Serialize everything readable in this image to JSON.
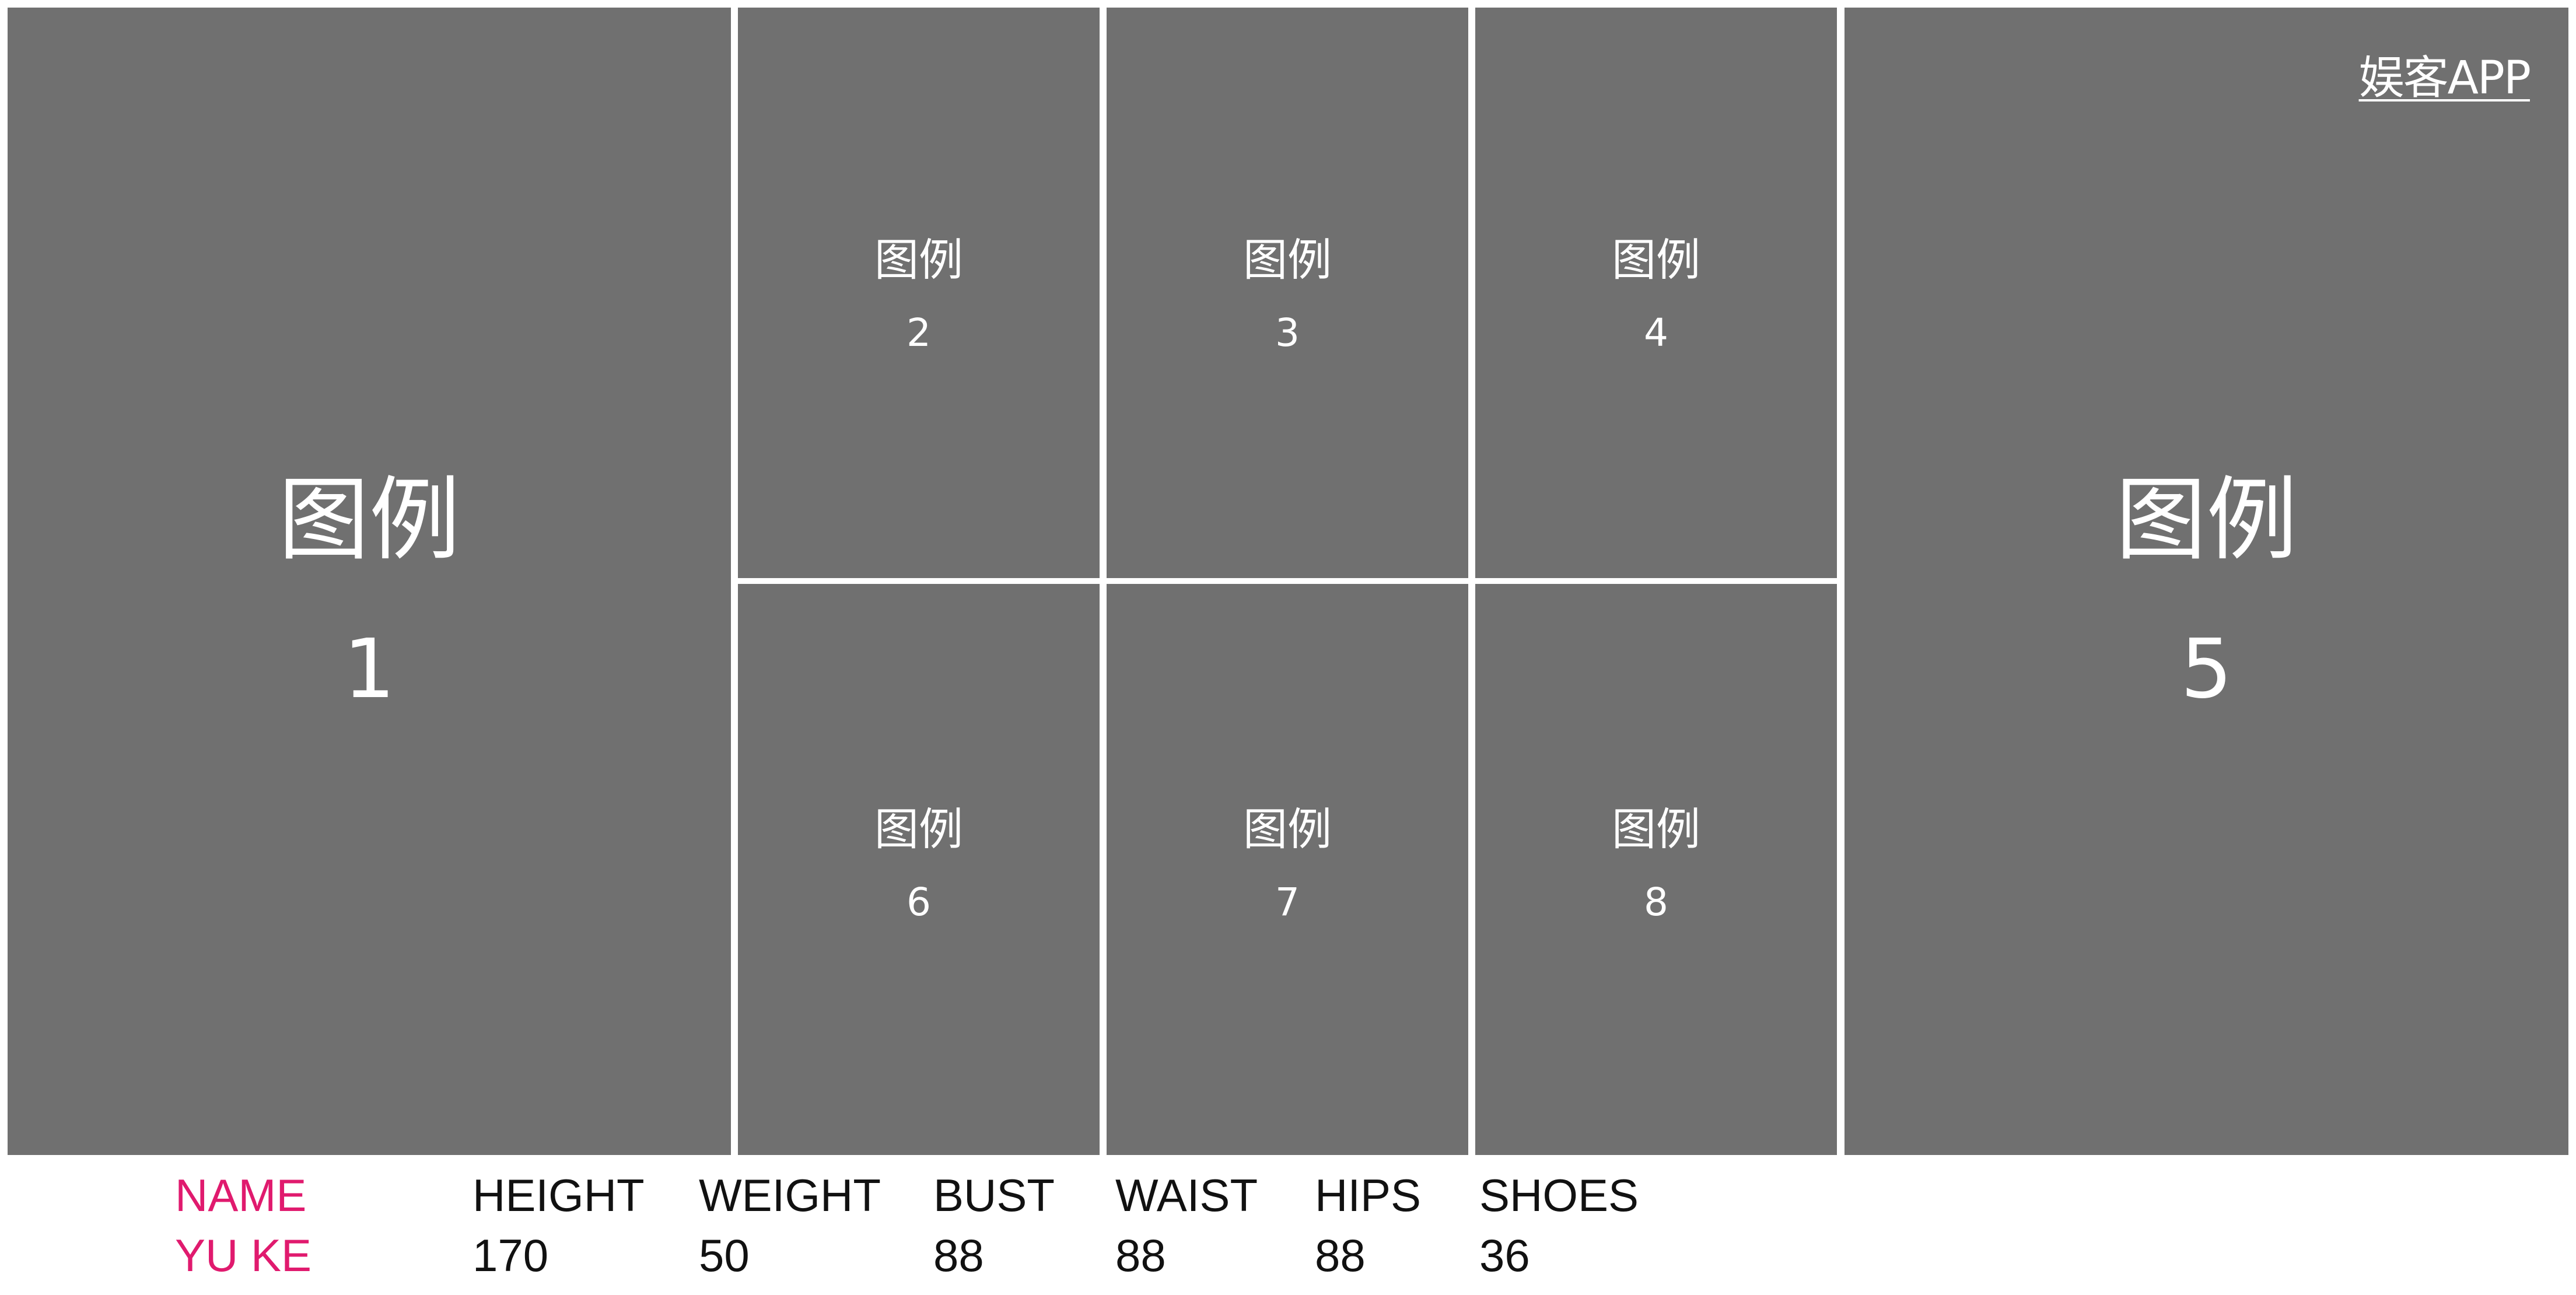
{
  "watermark": "娱客APP",
  "tiles": [
    {
      "label": "图例",
      "number": "1"
    },
    {
      "label": "图例",
      "number": "2"
    },
    {
      "label": "图例",
      "number": "3"
    },
    {
      "label": "图例",
      "number": "4"
    },
    {
      "label": "图例",
      "number": "5"
    },
    {
      "label": "图例",
      "number": "6"
    },
    {
      "label": "图例",
      "number": "7"
    },
    {
      "label": "图例",
      "number": "8"
    }
  ],
  "stats": {
    "name_label": "NAME",
    "name_value": "YU KE",
    "height_label": "HEIGHT",
    "height_value": "170",
    "weight_label": "WEIGHT",
    "weight_value": "50",
    "bust_label": "BUST",
    "bust_value": "88",
    "waist_label": "WAIST",
    "waist_value": "88",
    "hips_label": "HIPS",
    "hips_value": "88",
    "shoes_label": "SHOES",
    "shoes_value": "36"
  },
  "colors": {
    "tile_bg": "#707070",
    "accent": "#e01a6e"
  }
}
